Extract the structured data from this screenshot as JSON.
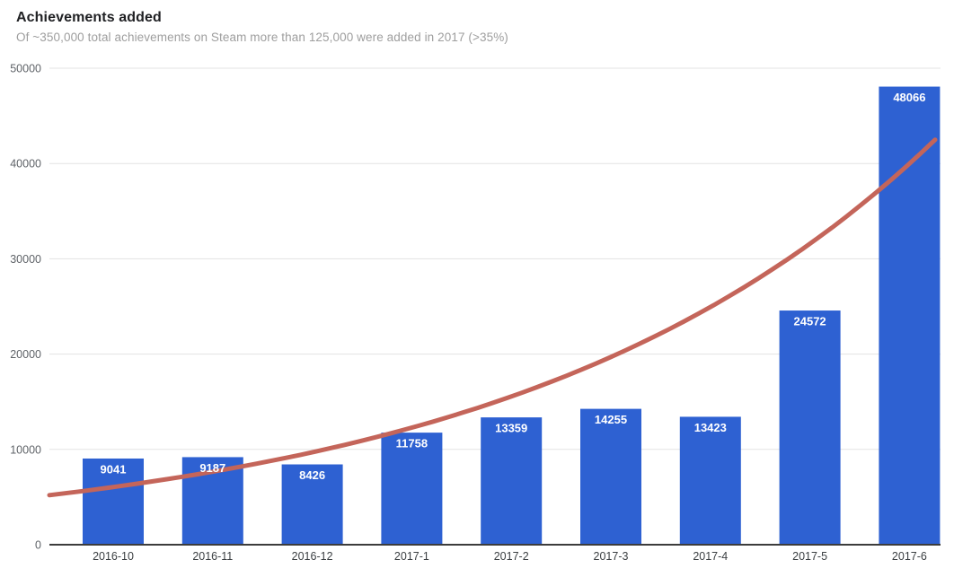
{
  "header": {
    "title": "Achievements added",
    "subtitle": "Of ~350,000 total achievements on Steam more than 125,000 were added in 2017 (>35%)"
  },
  "chart_data": {
    "type": "bar",
    "title": "Achievements added",
    "subtitle": "Of ~350,000 total achievements on Steam more than 125,000 were added in 2017 (>35%)",
    "categories": [
      "2016-10",
      "2016-11",
      "2016-12",
      "2017-1",
      "2017-2",
      "2017-3",
      "2017-4",
      "2017-5",
      "2017-6"
    ],
    "values": [
      9041,
      9187,
      8426,
      11758,
      13359,
      14255,
      13423,
      24572,
      48066
    ],
    "bar_value_labels": [
      "9041",
      "9187",
      "8426",
      "11758",
      "13359",
      "14255",
      "13423",
      "24572",
      "48066"
    ],
    "xlabel": "",
    "ylabel": "",
    "ylim": [
      0,
      50000
    ],
    "y_axis": {
      "min": 0,
      "max": 50000,
      "tick_step": 10000,
      "ticks": [
        0,
        10000,
        20000,
        30000,
        40000,
        50000
      ],
      "tick_labels": [
        "0",
        "10000",
        "20000",
        "30000",
        "40000",
        "50000"
      ]
    },
    "grid": true,
    "legend_position": "none",
    "trendline": {
      "type": "exponential",
      "start_value": 5200,
      "end_value": 42500,
      "color": "#c4655a",
      "width": 5
    },
    "colors": {
      "bar": "#2e61d2",
      "value_label": "#ffffff",
      "gridline": "#e3e3e3",
      "baseline": "#3c3c3c",
      "x_tick_label": "#3c4043",
      "y_tick_label": "#5f6368",
      "title": "#202124",
      "subtitle": "#9e9e9e"
    }
  }
}
